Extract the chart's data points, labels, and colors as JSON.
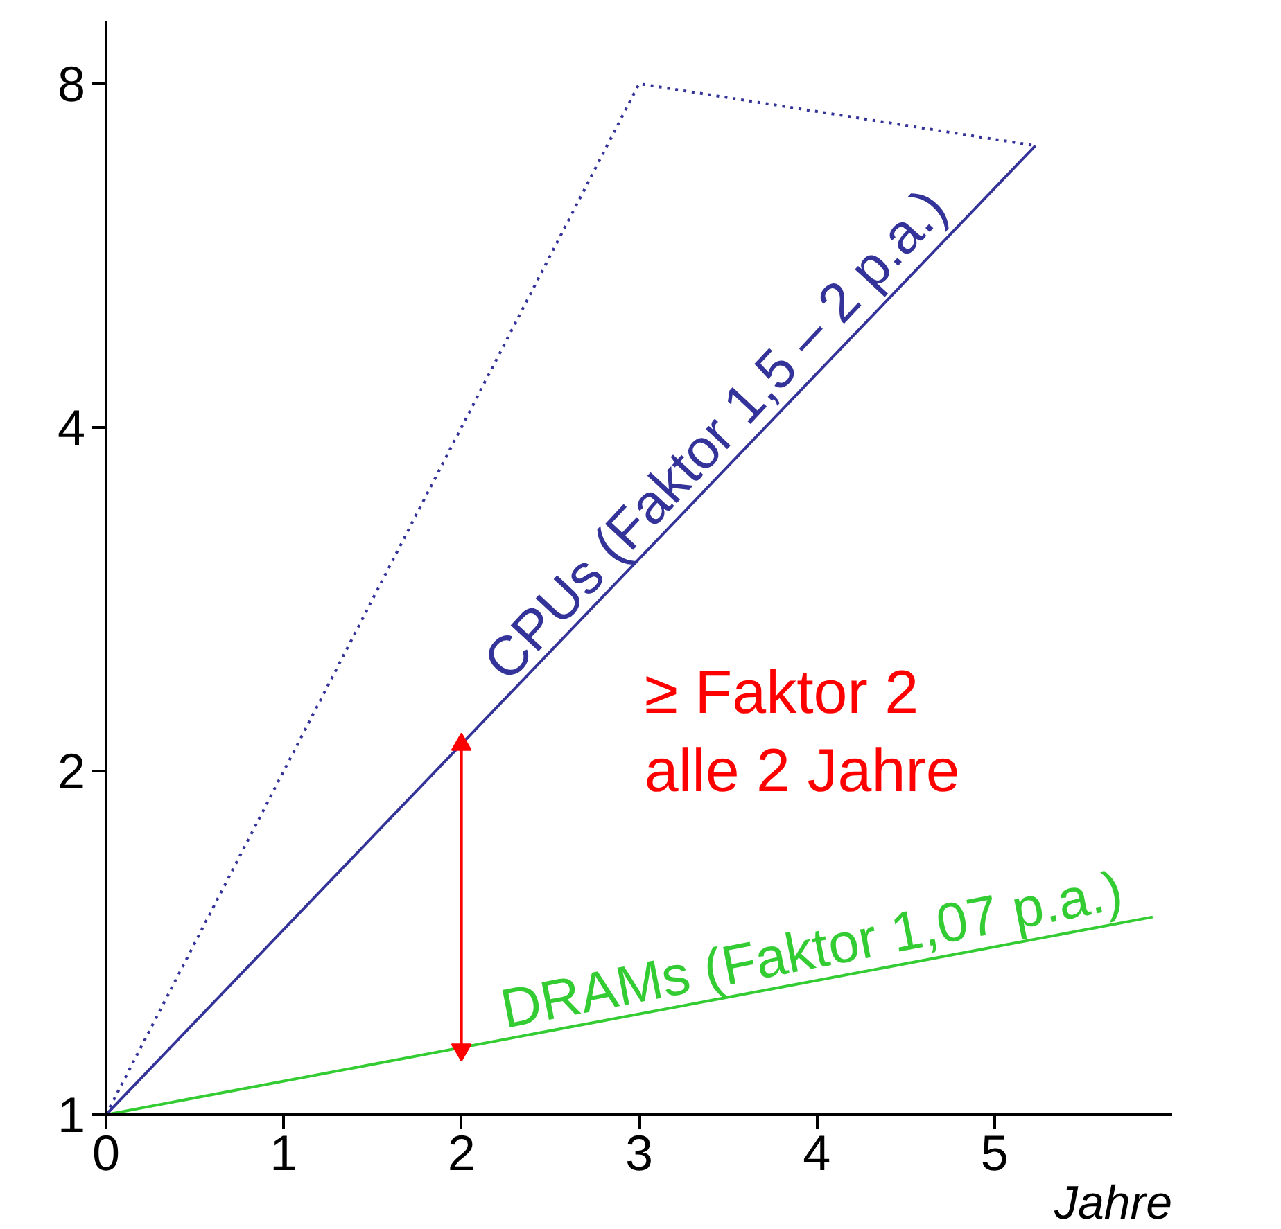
{
  "chart_data": {
    "type": "line",
    "xlabel": "Jahre",
    "log": "y",
    "grid": false,
    "legend": false,
    "marker": "none",
    "xlim": [
      0,
      6
    ],
    "ylim": [
      1,
      9.07
    ],
    "xticks": [
      0,
      1,
      2,
      3,
      4,
      5
    ],
    "yticks": [
      1,
      2,
      4,
      8
    ],
    "series": [
      {
        "name": "CPUs (Faktor 1,5 – 2 p.a.)",
        "color": "#333399",
        "line_style": "solid",
        "x": [
          0,
          5.23
        ],
        "values": [
          1,
          7.06
        ]
      },
      {
        "color": "#333399",
        "line_style": "dotted",
        "x": [
          0,
          3,
          5.23
        ],
        "values": [
          1,
          8,
          7.06
        ]
      },
      {
        "name": "DRAMs (Faktor 1,07 p.a.)",
        "color": "#33cc33",
        "line_style": "solid",
        "x": [
          0,
          5.89
        ],
        "values": [
          1,
          1.49
        ]
      },
      {
        "color": "#ff0000",
        "line_style": "solid",
        "marker": "triangle",
        "x": [
          2,
          2
        ],
        "values": [
          1.14,
          2.11
        ]
      }
    ],
    "annotations": [
      "≥ Faktor 2\nalle 2 Jahre"
    ]
  }
}
